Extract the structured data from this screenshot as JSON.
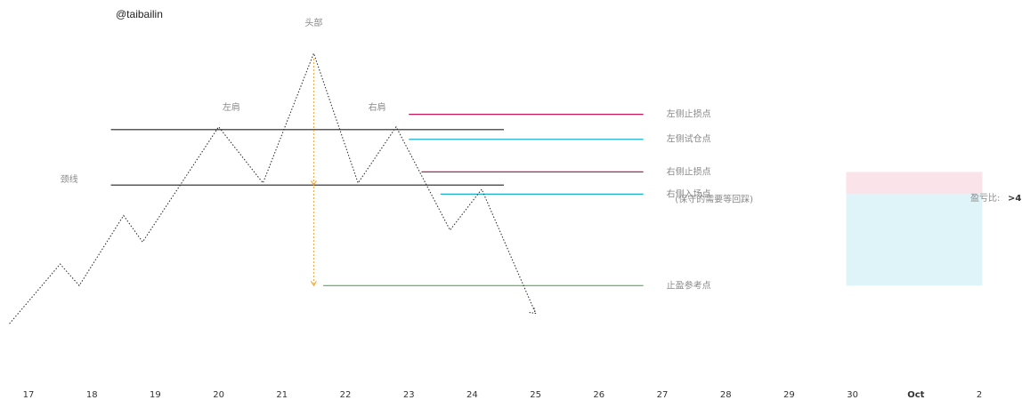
{
  "watermark": "@taibailin",
  "chart_data": {
    "type": "line",
    "title": "",
    "xlabel": "",
    "ylabel": "",
    "x_ticks": [
      "17",
      "18",
      "19",
      "20",
      "21",
      "22",
      "23",
      "24",
      "25",
      "26",
      "27",
      "28",
      "29",
      "30",
      "Oct",
      "2"
    ],
    "bold_ticks": [
      "Oct"
    ],
    "pattern_series": {
      "style": "dotted",
      "color": "#333333",
      "points": [
        {
          "x": 16.7,
          "y": 110
        },
        {
          "x": 17.5,
          "y": 196
        },
        {
          "x": 17.8,
          "y": 165
        },
        {
          "x": 18.5,
          "y": 266
        },
        {
          "x": 18.8,
          "y": 228
        },
        {
          "x": 20.0,
          "y": 394
        },
        {
          "x": 20.7,
          "y": 313
        },
        {
          "x": 21.5,
          "y": 500
        },
        {
          "x": 22.2,
          "y": 313
        },
        {
          "x": 22.8,
          "y": 394
        },
        {
          "x": 23.65,
          "y": 245
        },
        {
          "x": 24.15,
          "y": 304
        },
        {
          "x": 25.0,
          "y": 125
        }
      ]
    },
    "levels": [
      {
        "name": "shoulder-line",
        "y": 390,
        "from": 18.3,
        "to": 24.5,
        "color": "#222222",
        "style": "solid"
      },
      {
        "name": "neckline",
        "y": 310,
        "from": 18.3,
        "to": 24.5,
        "color": "#222222",
        "style": "solid"
      },
      {
        "name": "left-stop-loss",
        "y": 412,
        "from": 23.0,
        "to": 26.7,
        "color": "#c2185b",
        "style": "solid",
        "label": "左侧止损点"
      },
      {
        "name": "left-trial-entry",
        "y": 376,
        "from": 23.0,
        "to": 26.7,
        "color": "#1ab2c8",
        "style": "solid",
        "label": "左侧试仓点"
      },
      {
        "name": "right-stop-loss",
        "y": 329,
        "from": 23.2,
        "to": 26.7,
        "color": "#c2185b",
        "style": "solid",
        "label": "右侧止损点"
      },
      {
        "name": "right-entry",
        "y": 297,
        "from": 23.5,
        "to": 26.7,
        "color": "#1ab2c8",
        "style": "solid",
        "label": "右侧入场点"
      },
      {
        "name": "take-profit",
        "y": 165,
        "from": 21.65,
        "to": 26.7,
        "color": "#4caf50",
        "style": "solid",
        "label": "止盈参考点"
      }
    ],
    "projection": {
      "x": 21.5,
      "from_y": 500,
      "to_y": 310,
      "then_from_y": 310,
      "to_y2": 165,
      "color": "#f0a030",
      "style": "dotted"
    },
    "annotations": [
      {
        "name": "head-label",
        "text": "头部",
        "x": 21.5,
        "y": 540
      },
      {
        "name": "left-shoulder-label",
        "text": "左肩",
        "x": 20.2,
        "y": 418
      },
      {
        "name": "right-shoulder-label",
        "text": "右肩",
        "x": 22.5,
        "y": 418
      },
      {
        "name": "neckline-label",
        "text": "颈线",
        "x": 17.5,
        "y": 314
      },
      {
        "name": "conservative-note",
        "text": "(保守的需要等回踩)",
        "x": 27.2,
        "y": 285
      }
    ],
    "risk_reward": {
      "label": "盈亏比:",
      "value": ">4",
      "risk_color": "#fbe3ea",
      "reward_color": "#dff4f8",
      "x_from": 29.9,
      "x_to": 32.05,
      "risk_top": 329,
      "entry": 297,
      "target": 165
    },
    "xlim": [
      16.5,
      32.5
    ],
    "ylim": [
      0,
      560
    ]
  }
}
